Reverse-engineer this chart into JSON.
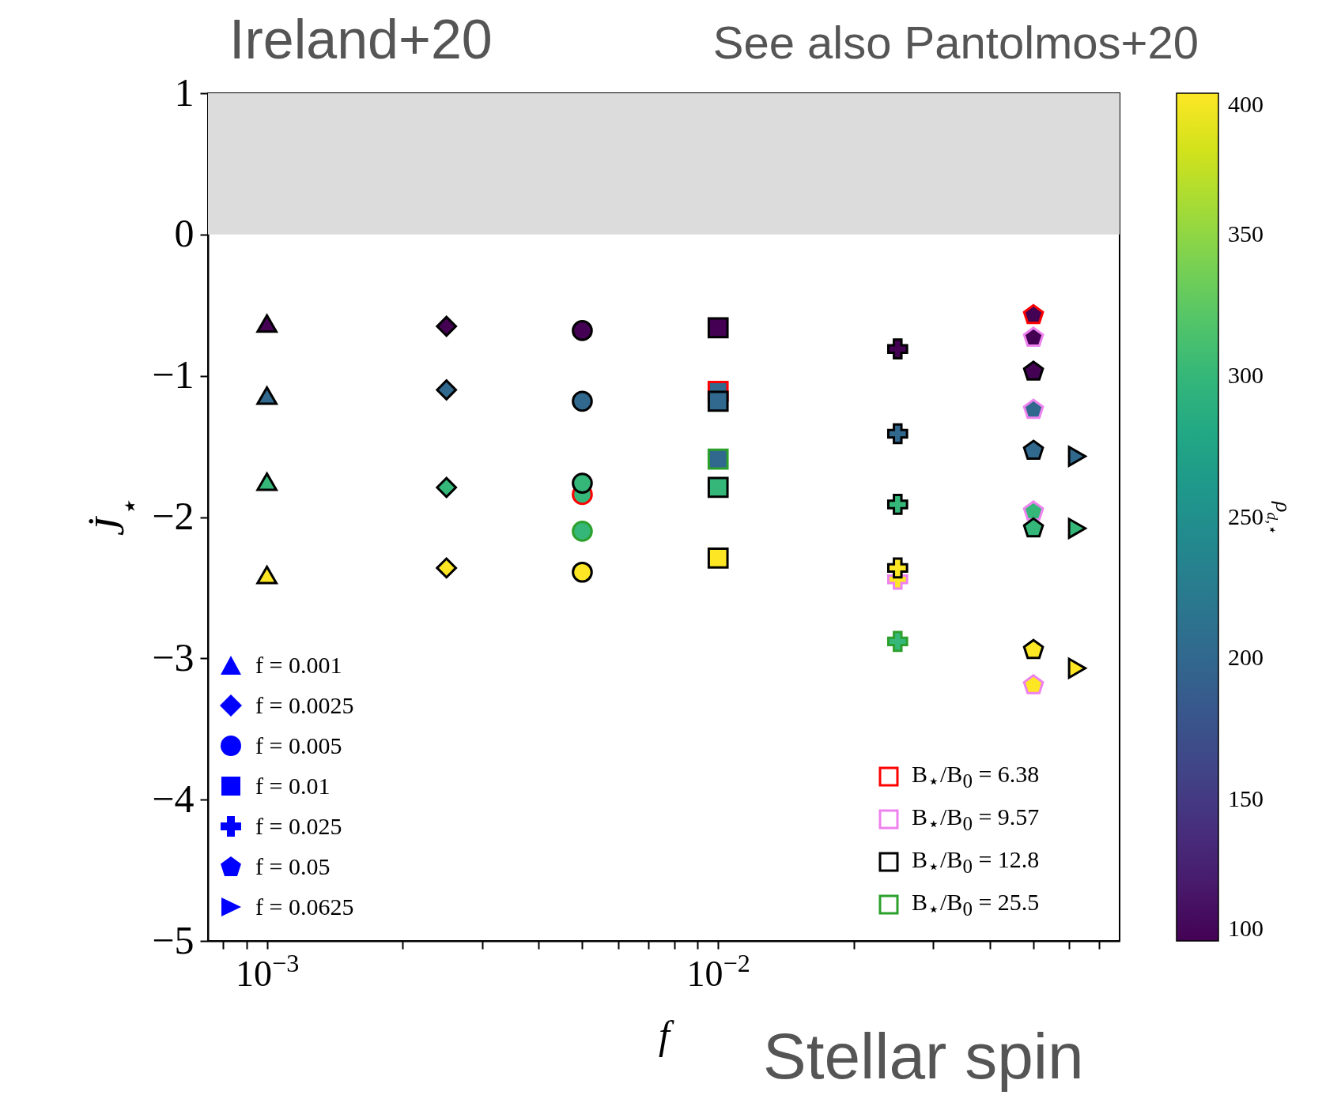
{
  "chart_data": {
    "type": "scatter",
    "xlabel": "f",
    "ylabel": "J̇$_{⋆}$",
    "clabel": "ρ$_{d,⋆}$",
    "log": "x",
    "grid": false,
    "xlim": [
      0.00074,
      0.0776
    ],
    "ylim": [
      -5,
      1
    ],
    "xticks": [
      {
        "value": 0.0008,
        "label": null
      },
      {
        "value": 0.0009,
        "label": null
      },
      {
        "value": 0.001,
        "label": "10$^{−3}$"
      },
      {
        "value": 0.002,
        "label": null
      },
      {
        "value": 0.003,
        "label": null
      },
      {
        "value": 0.004,
        "label": null
      },
      {
        "value": 0.005,
        "label": null
      },
      {
        "value": 0.006,
        "label": null
      },
      {
        "value": 0.007,
        "label": null
      },
      {
        "value": 0.008,
        "label": null
      },
      {
        "value": 0.009,
        "label": null
      },
      {
        "value": 0.01,
        "label": "10$^{−2}$"
      },
      {
        "value": 0.02,
        "label": null
      },
      {
        "value": 0.03,
        "label": null
      },
      {
        "value": 0.04,
        "label": null
      },
      {
        "value": 0.05,
        "label": null
      },
      {
        "value": 0.06,
        "label": null
      },
      {
        "value": 0.07,
        "label": null
      }
    ],
    "yticks": [
      {
        "value": -5,
        "label": "−5"
      },
      {
        "value": -4,
        "label": "−4"
      },
      {
        "value": -3,
        "label": "−3"
      },
      {
        "value": -2,
        "label": "−2"
      },
      {
        "value": -1,
        "label": "−1"
      },
      0,
      1
    ],
    "clim": [
      100,
      400
    ],
    "cticks": [
      100,
      150,
      200,
      250,
      300,
      350,
      400
    ],
    "bands": [
      {
        "axis": "y",
        "from": 0,
        "to": 1,
        "color": "#dcdcdc"
      }
    ],
    "annotations": [
      "Ireland+20",
      "See also Pantolmos+20",
      "Stellar spin",
      "f = 0.001",
      "f = 0.0025",
      "f = 0.005",
      "f = 0.01",
      "f = 0.025",
      "f = 0.05",
      "f = 0.0625",
      "B$_{⋆}$/B$_{0}$ = 6.38",
      "B$_{⋆}$/B$_{0}$ = 9.57",
      "B$_{⋆}$/B$_{0}$ = 12.8",
      "B$_{⋆}$/B$_{0}$ = 25.5"
    ],
    "series": [
      {
        "color": "#ff0000",
        "x": [
          0.005,
          0.01,
          0.05
        ],
        "values": [
          -1.84,
          -1.11,
          -0.57
        ],
        "cvalues": [
          300,
          200,
          100
        ]
      },
      {
        "color": "#ee82ee",
        "x": [
          0.025,
          0.05,
          0.05,
          0.05,
          0.05
        ],
        "values": [
          -2.44,
          -0.73,
          -1.24,
          -1.96,
          -3.19
        ],
        "cvalues": [
          400,
          100,
          200,
          300,
          400
        ]
      },
      {
        "color": "#000000",
        "x": [
          0.001,
          0.001,
          0.001,
          0.001,
          0.0025,
          0.0025,
          0.0025,
          0.0025,
          0.005,
          0.005,
          0.005,
          0.005,
          0.01,
          0.01,
          0.01,
          0.01,
          0.025,
          0.025,
          0.025,
          0.025,
          0.05,
          0.05,
          0.05,
          0.05,
          0.0625,
          0.0625,
          0.0625
        ],
        "values": [
          -0.63,
          -1.14,
          -1.75,
          -2.41,
          -0.65,
          -1.1,
          -1.79,
          -2.36,
          -0.68,
          -1.18,
          -1.76,
          -2.39,
          -0.66,
          -1.18,
          -1.79,
          -2.29,
          -0.81,
          -1.41,
          -1.91,
          -2.36,
          -0.97,
          -1.53,
          -2.08,
          -2.94,
          -1.57,
          -2.08,
          -3.07
        ],
        "cvalues": [
          100,
          200,
          300,
          400,
          100,
          200,
          300,
          400,
          100,
          200,
          300,
          400,
          100,
          200,
          300,
          400,
          100,
          200,
          300,
          400,
          100,
          200,
          300,
          400,
          200,
          300,
          400
        ]
      },
      {
        "color": "#2ca02c",
        "x": [
          0.005,
          0.01,
          0.025
        ],
        "values": [
          -2.1,
          -1.59,
          -2.88
        ],
        "cvalues": [
          300,
          200,
          300
        ]
      }
    ]
  }
}
